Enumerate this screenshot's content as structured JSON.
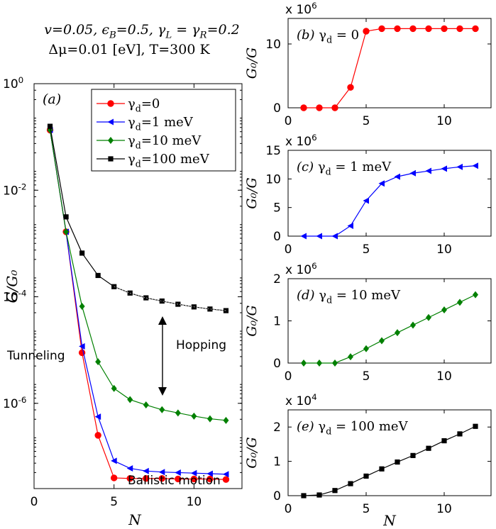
{
  "figure_title": {
    "line1": "v=0.05, ϵ_B=0.5, γ_L = γ_R=0.2",
    "line2": "Δμ=0.01 [eV], T=300 K"
  },
  "colors": {
    "gd0": "#ff0000",
    "gd1": "#0000ff",
    "gd10": "#008000",
    "gd100": "#000000",
    "hop_line": "#ffffff"
  },
  "chart_data": [
    {
      "id": "a",
      "type": "line",
      "panel_label": "(a)",
      "xlabel": "N",
      "ylabel": "G/G₀",
      "xlim": [
        0,
        13
      ],
      "yscale": "log",
      "ylim_exp": [
        -7.6,
        0
      ],
      "x_ticks": [
        0,
        5,
        10
      ],
      "y_ticks_exp": [
        0,
        -2,
        -4,
        -6
      ],
      "y_tick_labels": [
        "10^0",
        "10^-2",
        "10^-4",
        "10^-6"
      ],
      "legend_position": "top-right",
      "x": [
        1,
        2,
        3,
        4,
        5,
        6,
        7,
        8,
        9,
        10,
        11,
        12
      ],
      "series": [
        {
          "key": "gd0",
          "name": "γ_d=0",
          "marker": "circle",
          "exponents": [
            -0.87,
            -2.78,
            -5.05,
            -6.6,
            -7.4,
            -7.41,
            -7.41,
            -7.41,
            -7.42,
            -7.42,
            -7.42,
            -7.43
          ]
        },
        {
          "key": "gd1",
          "name": "γ_d=1 meV",
          "marker": "triangle",
          "exponents": [
            -0.87,
            -2.78,
            -4.93,
            -6.25,
            -7.08,
            -7.22,
            -7.27,
            -7.29,
            -7.3,
            -7.31,
            -7.32,
            -7.33
          ]
        },
        {
          "key": "gd10",
          "name": "γ_d=10 meV",
          "marker": "diamond",
          "exponents": [
            -0.87,
            -2.78,
            -4.18,
            -5.22,
            -5.72,
            -5.93,
            -6.03,
            -6.12,
            -6.18,
            -6.24,
            -6.29,
            -6.32
          ]
        },
        {
          "key": "gd100",
          "name": "γ_d=100 meV",
          "marker": "square",
          "exponents": [
            -0.8,
            -2.5,
            -3.18,
            -3.6,
            -3.81,
            -3.93,
            -4.02,
            -4.08,
            -4.14,
            -4.19,
            -4.23,
            -4.26
          ]
        }
      ],
      "annotations": {
        "tunneling": "Tunneling",
        "hopping": "Hopping",
        "ballistic": "Ballistic motion"
      }
    },
    {
      "id": "b",
      "type": "line",
      "panel_label": "(b)",
      "panel_text": "γ_d = 0",
      "series_key": "gd0",
      "marker": "circle",
      "xlim": [
        0,
        13
      ],
      "ylim": [
        0,
        14
      ],
      "x_ticks": [
        0,
        5,
        10
      ],
      "y_ticks": [
        0,
        10
      ],
      "multiplier": "x 10^6",
      "ylabel": "G₀/G",
      "xlabel": "",
      "x": [
        1,
        2,
        3,
        4,
        5,
        6,
        7,
        8,
        9,
        10,
        11,
        12
      ],
      "y": [
        0,
        0,
        0,
        3.2,
        12.0,
        12.4,
        12.4,
        12.4,
        12.4,
        12.4,
        12.4,
        12.4
      ]
    },
    {
      "id": "c",
      "type": "line",
      "panel_label": "(c)",
      "panel_text": "γ_d = 1 meV",
      "series_key": "gd1",
      "marker": "triangle",
      "xlim": [
        0,
        13
      ],
      "ylim": [
        0,
        15
      ],
      "x_ticks": [
        0,
        5,
        10
      ],
      "y_ticks": [
        0,
        5,
        10,
        15
      ],
      "multiplier": "x 10^6",
      "ylabel": "G₀/G",
      "xlabel": "",
      "x": [
        1,
        2,
        3,
        4,
        5,
        6,
        7,
        8,
        9,
        10,
        11,
        12
      ],
      "y": [
        0,
        0,
        0,
        1.8,
        6.2,
        9.2,
        10.4,
        11.0,
        11.4,
        11.8,
        12.1,
        12.3
      ]
    },
    {
      "id": "d",
      "type": "line",
      "panel_label": "(d)",
      "panel_text": "γ_d = 10 meV",
      "series_key": "gd10",
      "marker": "diamond",
      "xlim": [
        0,
        13
      ],
      "ylim": [
        0,
        2
      ],
      "x_ticks": [
        0,
        5,
        10
      ],
      "y_ticks": [
        0,
        1,
        2
      ],
      "multiplier": "x 10^6",
      "ylabel": "G₀/G",
      "xlabel": "",
      "x": [
        1,
        2,
        3,
        4,
        5,
        6,
        7,
        8,
        9,
        10,
        11,
        12
      ],
      "y": [
        0,
        0,
        0,
        0.15,
        0.34,
        0.53,
        0.72,
        0.9,
        1.08,
        1.26,
        1.44,
        1.62
      ]
    },
    {
      "id": "e",
      "type": "line",
      "panel_label": "(e)",
      "panel_text": "γ_d = 100 meV",
      "series_key": "gd100",
      "marker": "square",
      "xlim": [
        0,
        13
      ],
      "ylim": [
        0,
        2.5
      ],
      "x_ticks": [
        0,
        5,
        10
      ],
      "y_ticks": [
        0,
        1,
        2
      ],
      "multiplier": "x 10^4",
      "ylabel": "G₀/G",
      "xlabel": "N",
      "x": [
        1,
        2,
        3,
        4,
        5,
        6,
        7,
        8,
        9,
        10,
        11,
        12
      ],
      "y": [
        0,
        0.02,
        0.15,
        0.35,
        0.57,
        0.78,
        0.98,
        1.17,
        1.38,
        1.6,
        1.8,
        2.02
      ]
    }
  ]
}
